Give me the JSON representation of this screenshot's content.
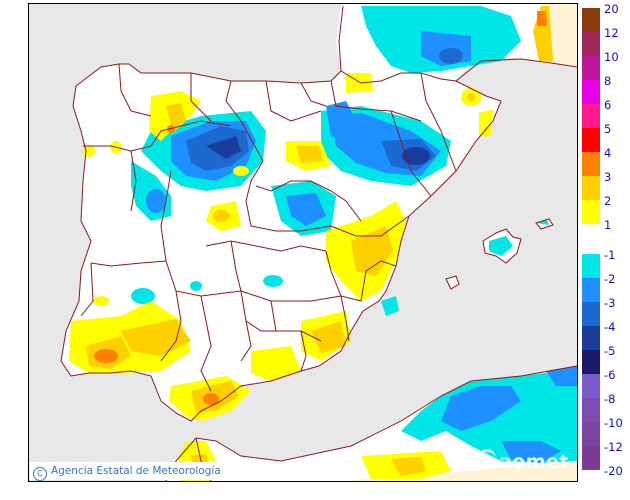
{
  "map": {
    "region": "Iberian Peninsula and Balearic Islands",
    "colors": {
      "sea": "#e8e8e8",
      "land": "#ffffff",
      "foreign_land": "#fff3d6",
      "boundaries": "#8b1a1a"
    }
  },
  "credit": {
    "copyright_symbol": "C",
    "text": "Agencia Estatal de Meteorología"
  },
  "logo": {
    "text": "aemet",
    "icon": "aemet-swirl-icon"
  },
  "legend": {
    "positive": [
      {
        "label": "20",
        "color": "#8b3a0e"
      },
      {
        "label": "12",
        "color": "#a0265a"
      },
      {
        "label": "10",
        "color": "#c0189c"
      },
      {
        "label": "8",
        "color": "#e600e6"
      },
      {
        "label": "6",
        "color": "#ff1a8c"
      },
      {
        "label": "5",
        "color": "#ff0000"
      },
      {
        "label": "4",
        "color": "#ff8000"
      },
      {
        "label": "3",
        "color": "#ffd000"
      },
      {
        "label": "2",
        "color": "#ffff00"
      }
    ],
    "positive_last_label": "1",
    "negative": [
      {
        "label": "-1",
        "color": "#00e6e6"
      },
      {
        "label": "-2",
        "color": "#1e90ff"
      },
      {
        "label": "-3",
        "color": "#1c6ad0"
      },
      {
        "label": "-4",
        "color": "#1a3c9c"
      },
      {
        "label": "-5",
        "color": "#1a1a6a"
      },
      {
        "label": "-6",
        "color": "#7a5ccc"
      },
      {
        "label": "-8",
        "color": "#7c4cb4"
      },
      {
        "label": "-10",
        "color": "#7e44a4"
      },
      {
        "label": "-12",
        "color": "#7c3c94"
      }
    ],
    "negative_last_label": "-20"
  }
}
